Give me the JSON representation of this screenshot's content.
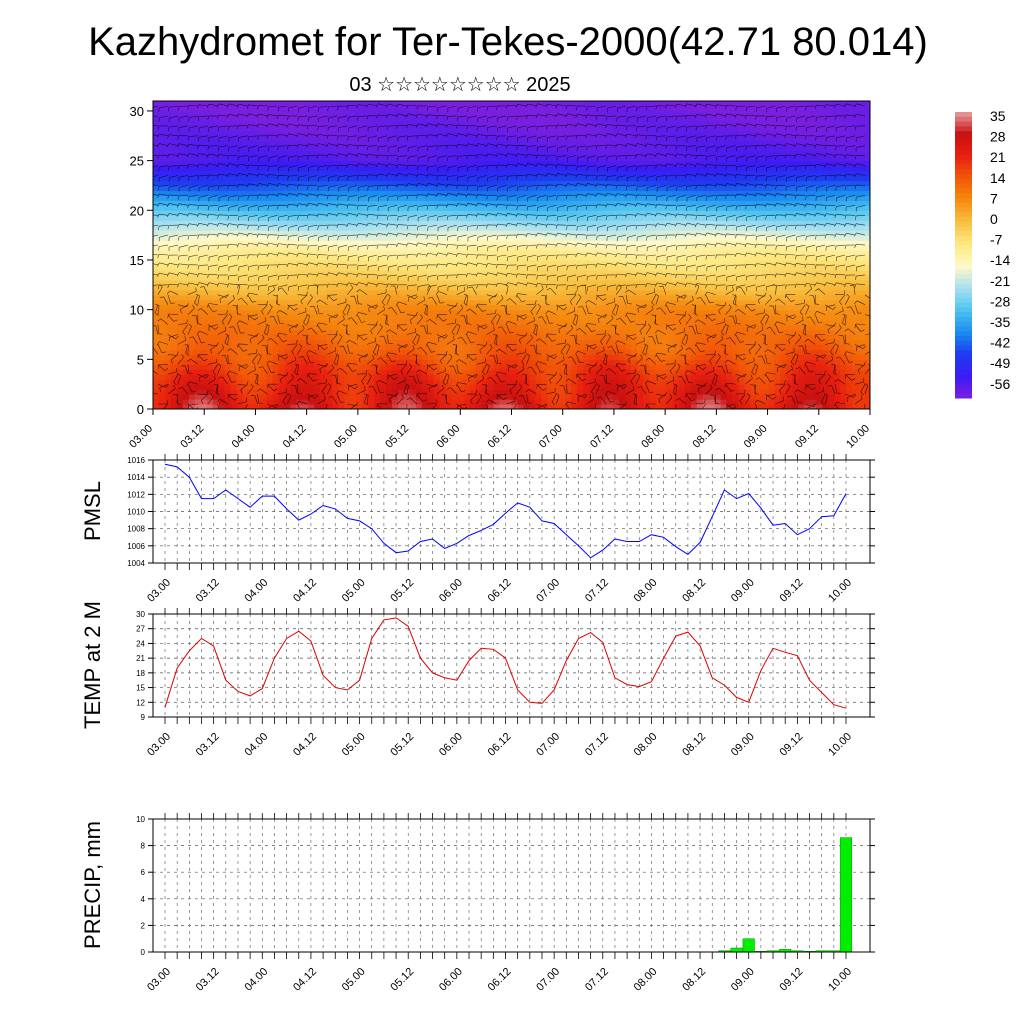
{
  "page": {
    "title": "Kazhydromet for Ter-Tekes-2000(42.71 80.014)",
    "subtitle": "03 ☆☆☆☆☆☆☆☆ 2025"
  },
  "colors": {
    "pmsl_line": "#0000ff",
    "temp_line": "#dd0000",
    "precip_bar": "#00ee00",
    "colormap": [
      "#7a1fe0",
      "#3a1cf5",
      "#1e3cf0",
      "#1a8ef0",
      "#4fc3f0",
      "#a8e0f0",
      "#fff9c8",
      "#fde882",
      "#f8c040",
      "#f58a10",
      "#f25808",
      "#e82010",
      "#c81010",
      "#e8a0a0"
    ]
  },
  "chart_data": [
    {
      "type": "heatmap",
      "title": "",
      "xlabel": "",
      "ylabel": "",
      "x_ticks": [
        "03.00",
        "03.12",
        "04.00",
        "04.12",
        "05.00",
        "05.12",
        "06.00",
        "06.12",
        "07.00",
        "07.12",
        "08.00",
        "08.12",
        "09.00",
        "09.12",
        "10.00"
      ],
      "y_ticks": [
        "0",
        "5",
        "10",
        "15",
        "20",
        "25",
        "30"
      ],
      "ylim": [
        0,
        31
      ],
      "colorbar_labels": [
        "35",
        "28",
        "21",
        "14",
        "7",
        "0",
        "-7",
        "-14",
        "-21",
        "-28",
        "-35",
        "-42",
        "-49",
        "-56"
      ],
      "colorbar_range": [
        -60,
        38
      ],
      "vertical_profile_midday": [
        [
          0,
          28
        ],
        [
          3,
          22
        ],
        [
          6,
          14
        ],
        [
          10,
          8
        ],
        [
          13,
          -2
        ],
        [
          16,
          -10
        ],
        [
          19,
          -25
        ],
        [
          22,
          -40
        ],
        [
          25,
          -55
        ],
        [
          28,
          -58
        ],
        [
          31,
          -60
        ]
      ],
      "overlay": "wind barbs",
      "grid": false
    },
    {
      "type": "line",
      "ylabel": "PMSL",
      "ylim": [
        1004,
        1016
      ],
      "y_ticks": [
        "1004",
        "1006",
        "1008",
        "1010",
        "1012",
        "1014",
        "1016"
      ],
      "x_ticks": [
        "03.00",
        "03.12",
        "04.00",
        "04.12",
        "05.00",
        "05.12",
        "06.00",
        "06.12",
        "07.00",
        "07.12",
        "08.00",
        "08.12",
        "09.00",
        "09.12",
        "10.00"
      ],
      "grid": true,
      "series": [
        {
          "values": [
            1015.5,
            1015.2,
            1014,
            1011.5,
            1011.5,
            1012.5,
            1011.5,
            1010.5,
            1011.8,
            1011.8,
            1010.3,
            1009,
            1009.7,
            1010.7,
            1010.3,
            1009.2,
            1008.9,
            1008,
            1006.3,
            1005.2,
            1005.4,
            1006.5,
            1006.8,
            1005.7,
            1006.3,
            1007.2,
            1007.8,
            1008.5,
            1009.8,
            1011,
            1010.5,
            1008.9,
            1008.6,
            1007.3,
            1006,
            1004.6,
            1005.5,
            1006.8,
            1006.5,
            1006.5,
            1007.3,
            1007,
            1005.9,
            1005,
            1006.4,
            1009.4,
            1012.5,
            1011.5,
            1012.1,
            1010.4,
            1008.4,
            1008.6,
            1007.3,
            1008,
            1009.4,
            1009.5,
            1012.1
          ]
        }
      ]
    },
    {
      "type": "line",
      "ylabel": "TEMP at 2 M",
      "ylim": [
        9,
        30
      ],
      "y_ticks": [
        "9",
        "12",
        "15",
        "18",
        "21",
        "24",
        "27",
        "30"
      ],
      "x_ticks": [
        "03.00",
        "03.12",
        "04.00",
        "04.12",
        "05.00",
        "05.12",
        "06.00",
        "06.12",
        "07.00",
        "07.12",
        "08.00",
        "08.12",
        "09.00",
        "09.12",
        "10.00"
      ],
      "grid": true,
      "series": [
        {
          "values": [
            11,
            19,
            22.5,
            25,
            23.5,
            16.5,
            14.2,
            13.3,
            14.8,
            21,
            25,
            26.5,
            24.5,
            17.5,
            15,
            14.5,
            16.5,
            25,
            28.8,
            29.2,
            27.5,
            21,
            18,
            17,
            16.5,
            20.5,
            23,
            22.8,
            21,
            14.5,
            12,
            11.8,
            14.5,
            20.5,
            25,
            26.2,
            24.2,
            17,
            15.6,
            15.2,
            16.2,
            21,
            25.5,
            26.3,
            23.5,
            17,
            15.5,
            13,
            12,
            18.5,
            23,
            22.2,
            21.5,
            16.5,
            14,
            11.5,
            10.8
          ]
        }
      ]
    },
    {
      "type": "bar",
      "ylabel": "PRECIP, mm",
      "ylim": [
        0,
        10
      ],
      "y_ticks": [
        "0",
        "2",
        "4",
        "6",
        "8",
        "10"
      ],
      "x_ticks": [
        "03.00",
        "03.12",
        "04.00",
        "04.12",
        "05.00",
        "05.12",
        "06.00",
        "06.12",
        "07.00",
        "07.12",
        "08.00",
        "08.12",
        "09.00",
        "09.12",
        "10.00"
      ],
      "grid": true,
      "values": [
        0,
        0,
        0,
        0,
        0,
        0,
        0,
        0,
        0,
        0,
        0,
        0,
        0,
        0,
        0,
        0,
        0,
        0,
        0,
        0,
        0,
        0,
        0,
        0,
        0,
        0,
        0,
        0,
        0,
        0,
        0,
        0,
        0,
        0,
        0,
        0,
        0,
        0,
        0,
        0,
        0,
        0,
        0,
        0,
        0,
        0,
        0.1,
        0.3,
        1.0,
        0.05,
        0.1,
        0.2,
        0.1,
        0.05,
        0.1,
        0.1,
        8.6
      ]
    }
  ]
}
